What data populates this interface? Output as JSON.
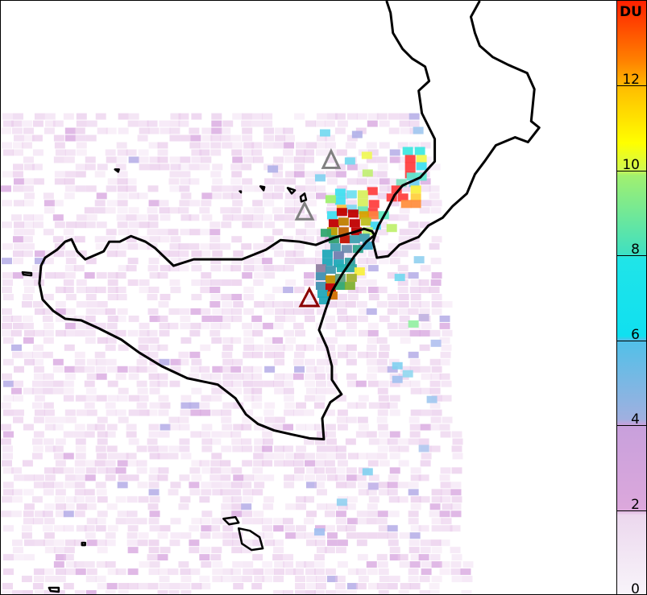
{
  "colorbar": {
    "unit": "DU",
    "min": 0,
    "max": 14,
    "ticks": [
      "0",
      "2",
      "4",
      "6",
      "8",
      "10",
      "12"
    ],
    "colors": [
      "#f8f4fa",
      "#dca8dc",
      "#a0b0e0",
      "#10e0f0",
      "#a0f070",
      "#ffff00",
      "#ff2000"
    ]
  },
  "markers": [
    {
      "name": "volcano-marker-1",
      "color": "#808080"
    },
    {
      "name": "volcano-marker-2",
      "color": "#808080"
    },
    {
      "name": "volcano-marker-etna",
      "color": "#8b0000"
    }
  ]
}
